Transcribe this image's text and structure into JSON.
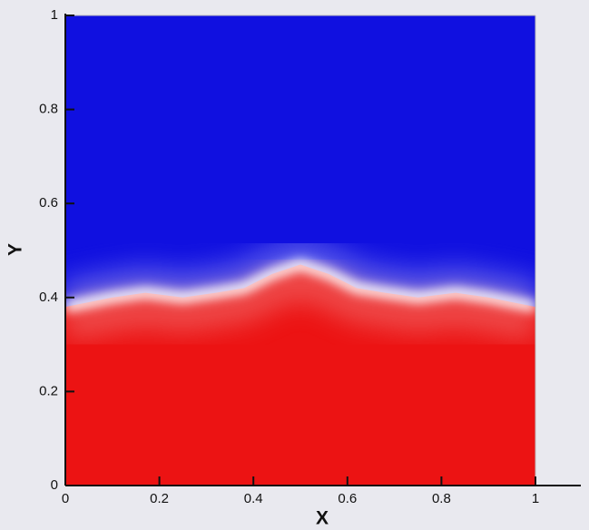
{
  "chart_data": {
    "type": "contour",
    "xlabel": "X",
    "ylabel": "Y",
    "xlim": [
      0,
      1
    ],
    "ylim": [
      0,
      1
    ],
    "xticks": [
      0,
      0.2,
      0.4,
      0.6,
      0.8,
      1
    ],
    "yticks": [
      0,
      0.2,
      0.4,
      0.6,
      0.8,
      1
    ],
    "color_above": "#1010e0",
    "color_below": "#ec1313",
    "x": [
      0,
      0.05,
      0.1,
      0.17,
      0.25,
      0.32,
      0.38,
      0.44,
      0.5,
      0.56,
      0.62,
      0.68,
      0.75,
      0.83,
      0.9,
      0.95,
      1
    ],
    "values": [
      0.38,
      0.39,
      0.4,
      0.41,
      0.4,
      0.41,
      0.42,
      0.45,
      0.47,
      0.45,
      0.42,
      0.41,
      0.4,
      0.41,
      0.4,
      0.39,
      0.38
    ]
  }
}
